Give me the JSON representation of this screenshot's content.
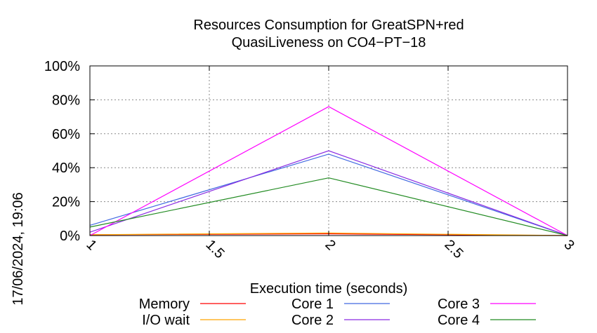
{
  "chart_data": {
    "type": "line",
    "title": [
      "Resources Consumption for GreatSPN+red",
      "QuasiLiveness on CO4−PT−18"
    ],
    "xlabel": "Execution time (seconds)",
    "ylabel": "",
    "xlim": [
      1,
      3
    ],
    "ylim": [
      0,
      100
    ],
    "xticks": [
      1,
      1.5,
      2,
      2.5,
      3
    ],
    "xtick_labels": [
      "1",
      "1.5",
      "2",
      "2.5",
      "3"
    ],
    "yticks": [
      0,
      20,
      40,
      60,
      80,
      100
    ],
    "ytick_labels": [
      "0%",
      "20%",
      "40%",
      "60%",
      "80%",
      "100%"
    ],
    "grid": true,
    "legend_position": "bottom",
    "x": [
      1,
      2,
      3
    ],
    "series": [
      {
        "name": "Memory",
        "color": "#ff0000",
        "values": [
          0.5,
          1.0,
          0.0
        ]
      },
      {
        "name": "I/O wait",
        "color": "#ffa500",
        "values": [
          0.5,
          1.5,
          0.0
        ]
      },
      {
        "name": "Core 1",
        "color": "#4169e1",
        "values": [
          6,
          48,
          0
        ]
      },
      {
        "name": "Core 2",
        "color": "#8a2be2",
        "values": [
          2,
          50,
          0
        ]
      },
      {
        "name": "Core 3",
        "color": "#ff00ff",
        "values": [
          0,
          76,
          0
        ]
      },
      {
        "name": "Core 4",
        "color": "#228b22",
        "values": [
          5,
          34,
          0
        ]
      }
    ]
  },
  "timestamp": "17/06/2024, 19:06"
}
